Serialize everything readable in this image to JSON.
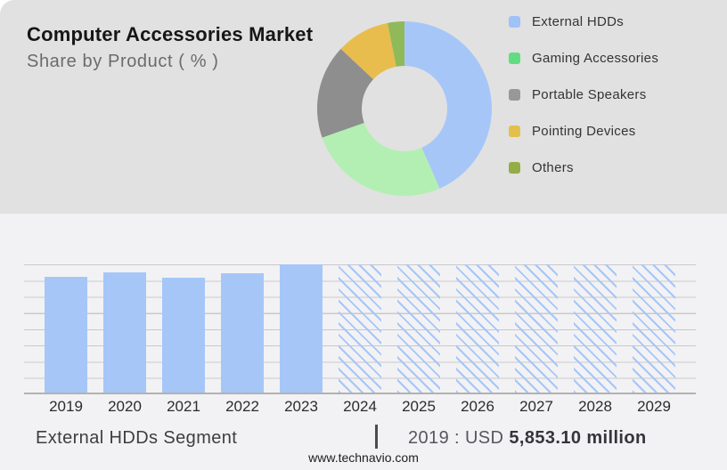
{
  "header": {
    "title": "Computer Accessories Market",
    "subtitle": "Share by Product ( % )"
  },
  "legend": {
    "items": [
      {
        "id": "external-hdds",
        "label": "External HDDs",
        "swatch_color": "#9fc2f7"
      },
      {
        "id": "gaming-accessories",
        "label": "Gaming Accessories",
        "swatch_color": "#5fdd80"
      },
      {
        "id": "portable-speakers",
        "label": "Portable Speakers",
        "swatch_color": "#989898"
      },
      {
        "id": "pointing-devices",
        "label": "Pointing Devices",
        "swatch_color": "#e2c04b"
      },
      {
        "id": "others",
        "label": "Others",
        "swatch_color": "#94ad45"
      }
    ]
  },
  "chart_data": [
    {
      "type": "pie",
      "subtype": "donut",
      "title": "Computer Accessories Market — Share by Product (%)",
      "start_angle_deg": 0,
      "direction": "clockwise",
      "hole_ratio": 0.49,
      "legend_position": "right",
      "slices": [
        {
          "label": "External HDDs",
          "value": 43.4,
          "color": "#a6c6f8"
        },
        {
          "label": "Gaming Accessories",
          "value": 26.2,
          "color": "#b3efb3"
        },
        {
          "label": "Portable Speakers",
          "value": 17.4,
          "color": "#8e8e8e"
        },
        {
          "label": "Pointing Devices",
          "value": 9.9,
          "color": "#e8bd4e"
        },
        {
          "label": "Others",
          "value": 3.1,
          "color": "#90b95a"
        }
      ],
      "note": "Slice values estimated from arc angles; no numeric labels shown in image"
    },
    {
      "type": "bar",
      "title": "External HDDs Segment",
      "categories": [
        "2019",
        "2020",
        "2021",
        "2022",
        "2023",
        "2024",
        "2025",
        "2026",
        "2027",
        "2028",
        "2029"
      ],
      "bars": [
        {
          "year": "2019",
          "style": "solid",
          "height_pct": 90.0
        },
        {
          "year": "2020",
          "style": "solid",
          "height_pct": 93.5
        },
        {
          "year": "2021",
          "style": "solid",
          "height_pct": 89.8
        },
        {
          "year": "2022",
          "style": "solid",
          "height_pct": 93.2
        },
        {
          "year": "2023",
          "style": "solid",
          "height_pct": 100
        },
        {
          "year": "2024",
          "style": "hatched",
          "height_pct": 100
        },
        {
          "year": "2025",
          "style": "hatched",
          "height_pct": 100
        },
        {
          "year": "2026",
          "style": "hatched",
          "height_pct": 100
        },
        {
          "year": "2027",
          "style": "hatched",
          "height_pct": 100
        },
        {
          "year": "2028",
          "style": "hatched",
          "height_pct": 100
        },
        {
          "year": "2029",
          "style": "hatched",
          "height_pct": 100
        }
      ],
      "known_values_usd_million": {
        "2019": 5853.1
      },
      "forecast_years": [
        "2024",
        "2025",
        "2026",
        "2027",
        "2028",
        "2029"
      ],
      "forecast_style": "full-height diagonal hatch",
      "bar_color": "#a6c6f8",
      "gridlines": true,
      "yaxis_labels": "none",
      "note": "Only the 2019 value is labeled (USD 5,853.10 million); other solid bar heights estimated relative to 2023 = 100%"
    }
  ],
  "footer": {
    "segment_label": "External HDDs Segment",
    "separator": "|",
    "value_prefix": "2019 : USD ",
    "value_bold": "5,853.10 million",
    "website": "www.technavio.com"
  }
}
